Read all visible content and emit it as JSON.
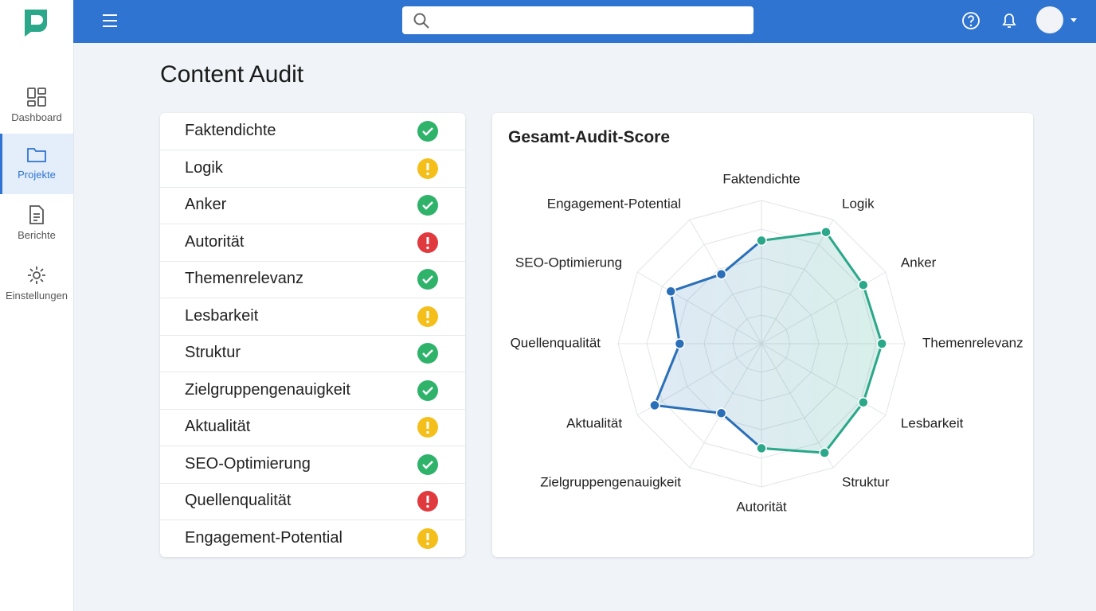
{
  "app": {
    "nav": [
      "Dashboard",
      "Projekte",
      "Berichte",
      "Einstellungen"
    ],
    "active_nav": 1
  },
  "page": {
    "title": "Content Audit"
  },
  "checklist": [
    {
      "label": "Faktendichte",
      "status": "ok"
    },
    {
      "label": "Logik",
      "status": "warn"
    },
    {
      "label": "Anker",
      "status": "ok"
    },
    {
      "label": "Autorität",
      "status": "error"
    },
    {
      "label": "Themenrelevanz",
      "status": "ok"
    },
    {
      "label": "Lesbarkeit",
      "status": "warn"
    },
    {
      "label": "Struktur",
      "status": "ok"
    },
    {
      "label": "Zielgruppengenauigkeit",
      "status": "ok"
    },
    {
      "label": "Aktualität",
      "status": "warn"
    },
    {
      "label": "SEO-Optimierung",
      "status": "ok"
    },
    {
      "label": "Quellenqualität",
      "status": "error"
    },
    {
      "label": "Engagement-Potential",
      "status": "warn"
    }
  ],
  "chart_data": {
    "type": "radar",
    "title": "Gesamt-Audit-Score",
    "categories": [
      "Faktendichte",
      "Logik",
      "Anker",
      "Themenrelevanz",
      "Lesbarkeit",
      "Struktur",
      "Autorität",
      "Zielgruppengenauigkeit",
      "Aktualität",
      "Quellenqualität",
      "SEO-Optimierung",
      "Engagement-Potential"
    ],
    "values": [
      72,
      90,
      82,
      84,
      82,
      88,
      73,
      56,
      86,
      57,
      73,
      56
    ],
    "colors": [
      "#2aa889",
      "#2aa889",
      "#2aa889",
      "#2aa889",
      "#2aa889",
      "#2aa889",
      "#2aa889",
      "#2a6fb8",
      "#2a6fb8",
      "#2a6fb8",
      "#2a6fb8",
      "#2a6fb8"
    ],
    "ylim": [
      0,
      100
    ],
    "yticks": [
      20,
      40,
      60,
      80,
      100
    ],
    "grid": true
  }
}
